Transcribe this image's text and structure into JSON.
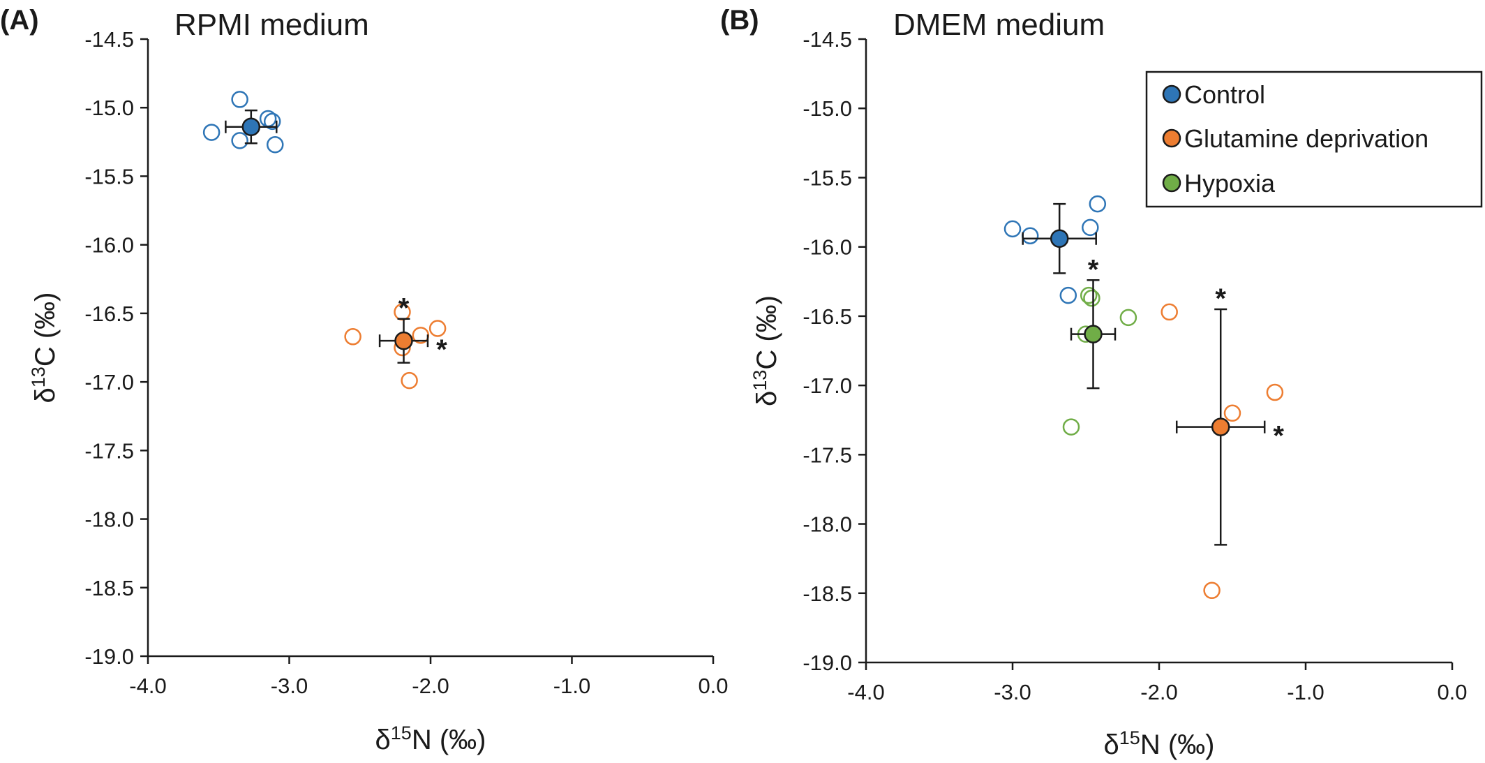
{
  "colors": {
    "control": "#2e75b6",
    "glutamine": "#ed7d31",
    "hypoxia": "#70ad47",
    "axis": "#1a1a1a"
  },
  "legend": {
    "items": [
      {
        "label": "Control",
        "color": "#2e75b6"
      },
      {
        "label": "Glutamine deprivation",
        "color": "#ed7d31"
      },
      {
        "label": "Hypoxia",
        "color": "#70ad47"
      }
    ]
  },
  "chart_data": [
    {
      "type": "scatter",
      "panel_letter": "(A)",
      "title": "RPMI medium",
      "xlabel": "δ15N (‰)",
      "ylabel": "δ13C (‰)",
      "xlim": [
        -4.0,
        0.0
      ],
      "ylim": [
        -19.0,
        -14.5
      ],
      "xticks": [
        "-4.0",
        "-3.0",
        "-2.0",
        "-1.0",
        "0.0"
      ],
      "yticks": [
        "-14.5",
        "-15.0",
        "-15.5",
        "-16.0",
        "-16.5",
        "-17.0",
        "-17.5",
        "-18.0",
        "-18.5",
        "-19.0"
      ],
      "legend": false,
      "series": [
        {
          "group": "control",
          "points": [
            [
              -3.35,
              -14.94
            ],
            [
              -3.55,
              -15.18
            ],
            [
              -3.15,
              -15.08
            ],
            [
              -3.12,
              -15.1
            ],
            [
              -3.35,
              -15.24
            ],
            [
              -3.1,
              -15.27
            ]
          ],
          "mean": {
            "x": -3.27,
            "y": -15.14,
            "xerr": 0.18,
            "yerr": 0.12
          },
          "stars": []
        },
        {
          "group": "glutamine",
          "points": [
            [
              -2.2,
              -16.49
            ],
            [
              -2.55,
              -16.67
            ],
            [
              -2.07,
              -16.66
            ],
            [
              -1.95,
              -16.61
            ],
            [
              -2.2,
              -16.75
            ],
            [
              -2.15,
              -16.99
            ]
          ],
          "mean": {
            "x": -2.19,
            "y": -16.7,
            "xerr": 0.17,
            "yerr": 0.16
          },
          "stars": [
            "y",
            "x"
          ]
        }
      ]
    },
    {
      "type": "scatter",
      "panel_letter": "(B)",
      "title": "DMEM medium",
      "xlabel": "δ15N (‰)",
      "ylabel": "δ13C (‰)",
      "xlim": [
        -4.0,
        0.0
      ],
      "ylim": [
        -19.0,
        -14.5
      ],
      "xticks": [
        "-4.0",
        "-3.0",
        "-2.0",
        "-1.0",
        "0.0"
      ],
      "yticks": [
        "-14.5",
        "-15.0",
        "-15.5",
        "-16.0",
        "-16.5",
        "-17.0",
        "-17.5",
        "-18.0",
        "-18.5",
        "-19.0"
      ],
      "legend": true,
      "series": [
        {
          "group": "control",
          "points": [
            [
              -2.42,
              -15.69
            ],
            [
              -3.0,
              -15.87
            ],
            [
              -2.88,
              -15.92
            ],
            [
              -2.47,
              -15.86
            ],
            [
              -2.62,
              -16.35
            ]
          ],
          "mean": {
            "x": -2.68,
            "y": -15.94,
            "xerr": 0.25,
            "yerr": 0.25
          },
          "stars": []
        },
        {
          "group": "hypoxia",
          "points": [
            [
              -2.48,
              -16.35
            ],
            [
              -2.46,
              -16.37
            ],
            [
              -2.21,
              -16.51
            ],
            [
              -2.5,
              -16.63
            ],
            [
              -2.6,
              -17.3
            ]
          ],
          "mean": {
            "x": -2.45,
            "y": -16.63,
            "xerr": 0.15,
            "yerr": 0.39
          },
          "stars": [
            "y"
          ]
        },
        {
          "group": "glutamine",
          "points": [
            [
              -1.93,
              -16.47
            ],
            [
              -1.21,
              -17.05
            ],
            [
              -1.5,
              -17.2
            ],
            [
              -1.64,
              -18.48
            ]
          ],
          "mean": {
            "x": -1.58,
            "y": -17.3,
            "xerr": 0.3,
            "yerr": 0.85
          },
          "stars": [
            "y",
            "x"
          ]
        }
      ]
    }
  ]
}
